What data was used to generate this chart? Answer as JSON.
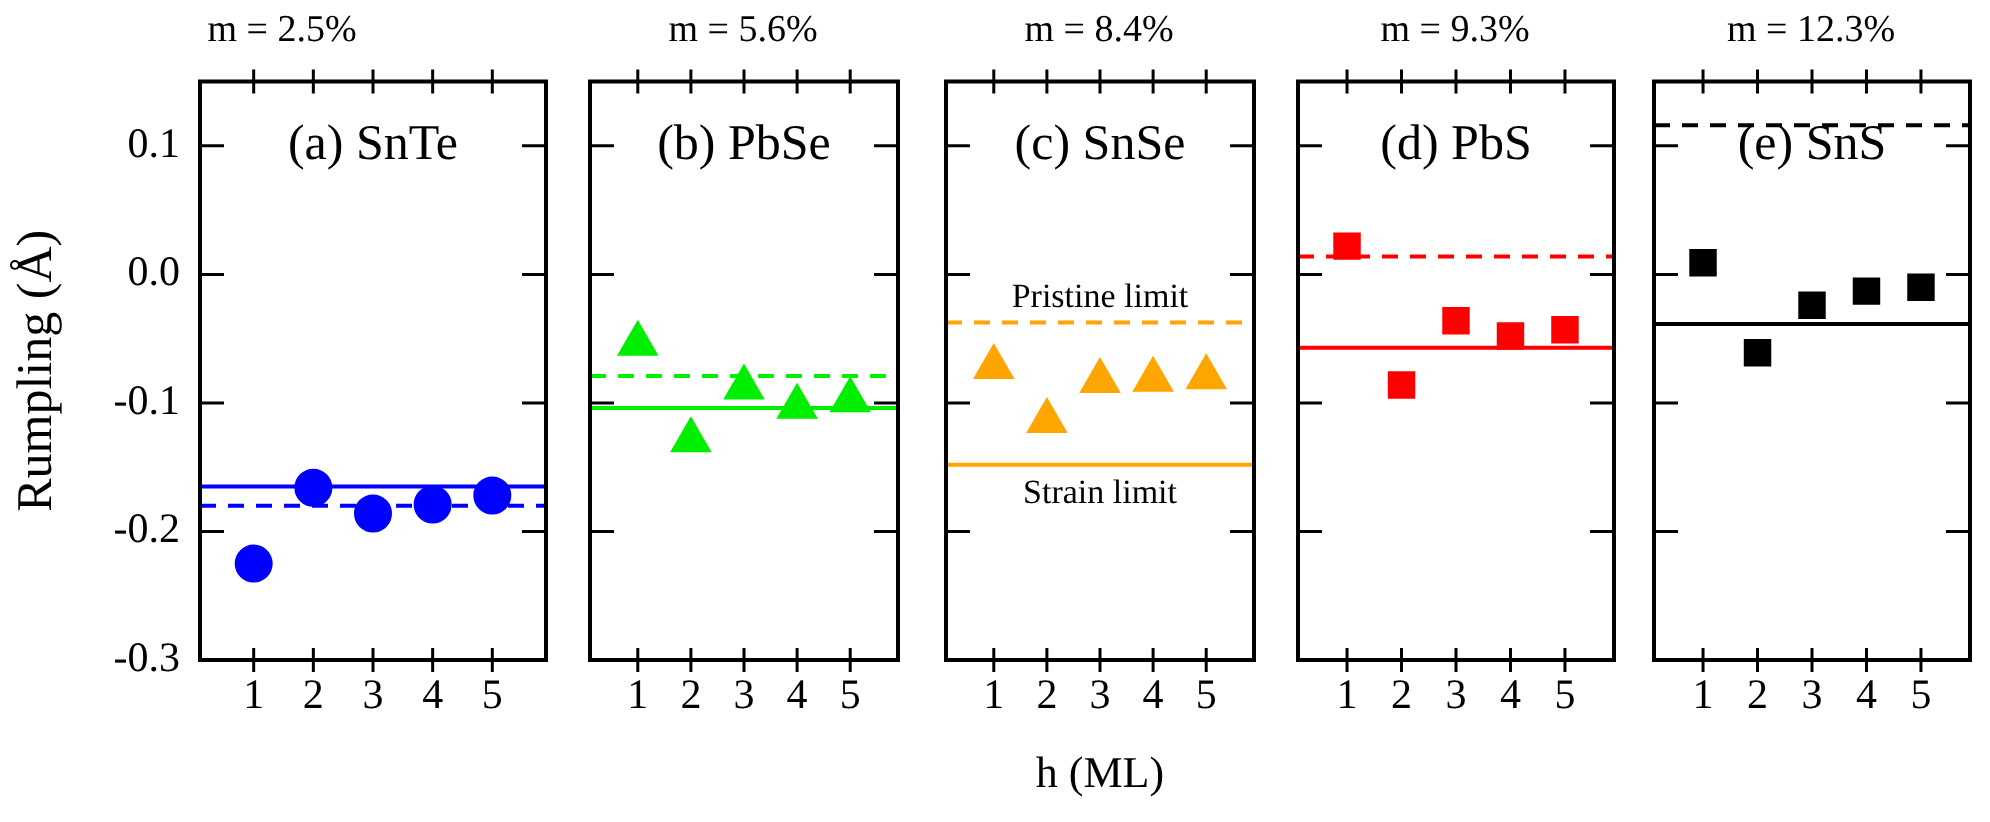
{
  "chart_data": [
    {
      "type": "scatter",
      "title": "m = 2.5%",
      "ylabel": "Rumpling (Å)",
      "annotations": [
        "(a) SnTe"
      ],
      "xlim": [
        0.1,
        5.9
      ],
      "xticks": [
        1,
        2,
        3,
        4,
        5
      ],
      "ylim": [
        -0.3,
        0.15
      ],
      "yticks": [
        0.1,
        {
          "value": 0,
          "label": "0.0"
        },
        -0.1,
        -0.2,
        -0.3
      ],
      "grid": false,
      "legend": false,
      "marker": "circle",
      "series": [
        {
          "color": "#0000ff",
          "x": [
            1,
            2,
            3,
            4,
            5
          ],
          "values": [
            -0.225,
            -0.166,
            -0.186,
            -0.179,
            -0.172
          ]
        }
      ],
      "ref_lines": [
        {
          "axis": "y",
          "value": -0.165,
          "color": "#0000ff",
          "line_style": "solid"
        },
        {
          "axis": "y",
          "value": -0.18,
          "color": "#0000ff",
          "line_style": "dashed"
        }
      ]
    },
    {
      "type": "scatter",
      "title": "m = 5.6%",
      "annotations": [
        "(b) PbSe"
      ],
      "xlim": [
        0.1,
        5.9
      ],
      "xticks": [
        1,
        2,
        3,
        4,
        5
      ],
      "ylim": [
        -0.3,
        0.15
      ],
      "yticks": [
        0.1,
        0,
        -0.1,
        -0.2,
        -0.3
      ],
      "tick_labels": "x",
      "grid": false,
      "legend": false,
      "marker": "triangle",
      "series": [
        {
          "color": "#00ee00",
          "x": [
            1,
            2,
            3,
            4,
            5
          ],
          "values": [
            -0.054,
            -0.129,
            -0.088,
            -0.103,
            -0.098
          ]
        }
      ],
      "ref_lines": [
        {
          "axis": "y",
          "value": -0.104,
          "color": "#00ee00",
          "line_style": "solid"
        },
        {
          "axis": "y",
          "value": -0.079,
          "color": "#00ee00",
          "line_style": "dashed"
        }
      ]
    },
    {
      "type": "scatter",
      "title": "m = 8.4%",
      "xlabel": "h (ML)",
      "annotations": [
        "(c) SnSe"
      ],
      "xlim": [
        0.1,
        5.9
      ],
      "xticks": [
        1,
        2,
        3,
        4,
        5
      ],
      "ylim": [
        -0.3,
        0.15
      ],
      "yticks": [
        0.1,
        0,
        -0.1,
        -0.2,
        -0.3
      ],
      "tick_labels": "x",
      "grid": false,
      "legend": false,
      "marker": "triangle",
      "series": [
        {
          "color": "#ffa500",
          "x": [
            1,
            2,
            3,
            4,
            5
          ],
          "values": [
            -0.072,
            -0.114,
            -0.083,
            -0.082,
            -0.08
          ]
        }
      ],
      "ref_lines": [
        {
          "axis": "y",
          "value": -0.148,
          "color": "#ffa500",
          "line_style": "solid",
          "label": "Strain limit"
        },
        {
          "axis": "y",
          "value": -0.0375,
          "color": "#ffa500",
          "line_style": "dashed",
          "label": "Pristine limit"
        }
      ]
    },
    {
      "type": "scatter",
      "title": "m = 9.3%",
      "annotations": [
        "(d) PbS"
      ],
      "xlim": [
        0.1,
        5.9
      ],
      "xticks": [
        1,
        2,
        3,
        4,
        5
      ],
      "ylim": [
        -0.3,
        0.15
      ],
      "yticks": [
        0.1,
        0,
        -0.1,
        -0.2,
        -0.3
      ],
      "tick_labels": "x",
      "grid": false,
      "legend": false,
      "marker": "square",
      "series": [
        {
          "color": "#ff0000",
          "x": [
            1,
            2,
            3,
            4,
            5
          ],
          "values": [
            0.022,
            -0.086,
            -0.036,
            -0.048,
            -0.043
          ]
        }
      ],
      "ref_lines": [
        {
          "axis": "y",
          "value": -0.057,
          "color": "#ff0000",
          "line_style": "solid"
        },
        {
          "axis": "y",
          "value": 0.014,
          "color": "#ff0000",
          "line_style": "dashed"
        }
      ]
    },
    {
      "type": "scatter",
      "title": "m = 12.3%",
      "annotations": [
        "(e) SnS"
      ],
      "xlim": [
        0.1,
        5.9
      ],
      "xticks": [
        1,
        2,
        3,
        4,
        5
      ],
      "ylim": [
        -0.3,
        0.15
      ],
      "yticks": [
        0.1,
        0,
        -0.1,
        -0.2,
        -0.3
      ],
      "tick_labels": "x",
      "grid": false,
      "legend": false,
      "marker": "square",
      "series": [
        {
          "color": "#000000",
          "x": [
            1,
            2,
            3,
            4,
            5
          ],
          "values": [
            0.009,
            -0.061,
            -0.024,
            -0.013,
            -0.01
          ]
        }
      ],
      "ref_lines": [
        {
          "axis": "y",
          "value": -0.0385,
          "color": "#000000",
          "line_style": "solid"
        },
        {
          "axis": "y",
          "value": 0.116,
          "color": "#000000",
          "line_style": "dashed"
        }
      ]
    }
  ]
}
